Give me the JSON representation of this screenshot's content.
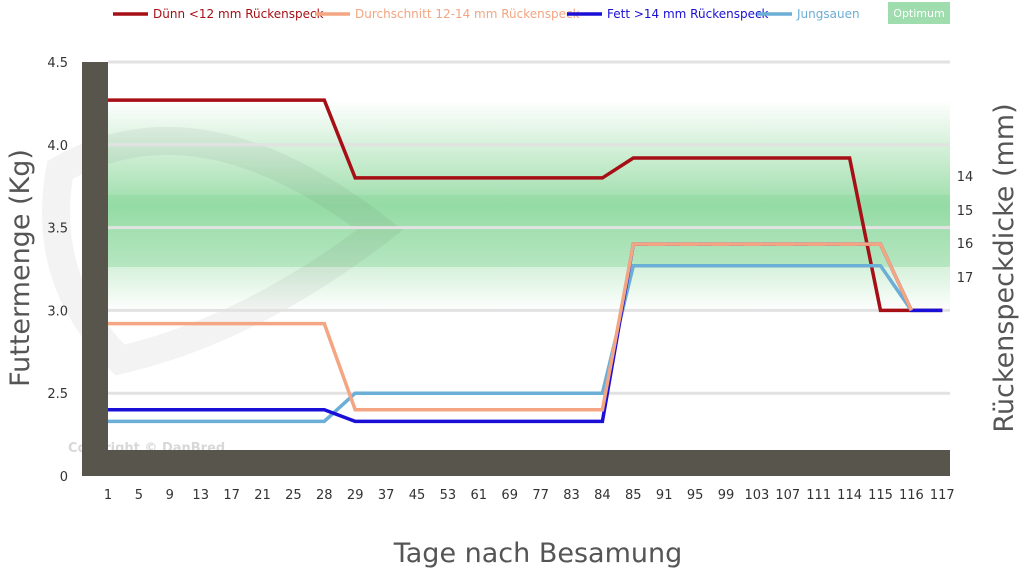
{
  "chart_data": {
    "type": "line",
    "title": "",
    "xlabel": "Tage nach Besamung",
    "ylabel": "Futtermenge (Kg)",
    "y2label": "Rückenspeckdicke (mm)",
    "categories": [
      "1",
      "5",
      "9",
      "13",
      "17",
      "21",
      "25",
      "28",
      "29",
      "37",
      "45",
      "53",
      "61",
      "69",
      "77",
      "83",
      "84",
      "85",
      "91",
      "95",
      "99",
      "103",
      "107",
      "111",
      "114",
      "115",
      "116",
      "117"
    ],
    "yticks": [
      "0",
      "2.5",
      "3.0",
      "3.5",
      "4.0",
      "4.5"
    ],
    "y2ticks": [
      "14",
      "15",
      "16",
      "17"
    ],
    "optimum_label": "Optimum",
    "watermark": "Copyright © DanBred",
    "legend_position": "top",
    "series": [
      {
        "name": "Dünn <12 mm Rückenspeck",
        "color": "#a50f15",
        "values": [
          4.27,
          4.27,
          4.27,
          4.27,
          4.27,
          4.27,
          4.27,
          4.27,
          3.8,
          3.8,
          3.8,
          3.8,
          3.8,
          3.8,
          3.8,
          3.8,
          3.8,
          3.92,
          3.92,
          3.92,
          3.92,
          3.92,
          3.92,
          3.92,
          3.92,
          3.0,
          3.0,
          3.0
        ]
      },
      {
        "name": "Durchschnitt 12-14 mm Rückenspeck",
        "color": "#f4a582",
        "values": [
          2.92,
          2.92,
          2.92,
          2.92,
          2.92,
          2.92,
          2.92,
          2.92,
          2.4,
          2.4,
          2.4,
          2.4,
          2.4,
          2.4,
          2.4,
          2.4,
          2.4,
          3.4,
          3.4,
          3.4,
          3.4,
          3.4,
          3.4,
          3.4,
          3.4,
          3.4,
          3.0,
          null
        ]
      },
      {
        "name": "Fett >14 mm Rückenspeck",
        "color": "#1a0fd6",
        "values": [
          2.4,
          2.4,
          2.4,
          2.4,
          2.4,
          2.4,
          2.4,
          2.4,
          2.33,
          2.33,
          2.33,
          2.33,
          2.33,
          2.33,
          2.33,
          2.33,
          2.33,
          3.4,
          3.4,
          3.4,
          3.4,
          3.4,
          3.4,
          3.4,
          3.4,
          3.4,
          3.0,
          3.0
        ]
      },
      {
        "name": "Jungsauen",
        "color": "#6baed6",
        "values": [
          2.33,
          2.33,
          2.33,
          2.33,
          2.33,
          2.33,
          2.33,
          2.33,
          2.5,
          2.5,
          2.5,
          2.5,
          2.5,
          2.5,
          2.5,
          2.5,
          2.5,
          3.27,
          3.27,
          3.27,
          3.27,
          3.27,
          3.27,
          3.27,
          3.27,
          3.27,
          3.0,
          null
        ]
      }
    ]
  }
}
